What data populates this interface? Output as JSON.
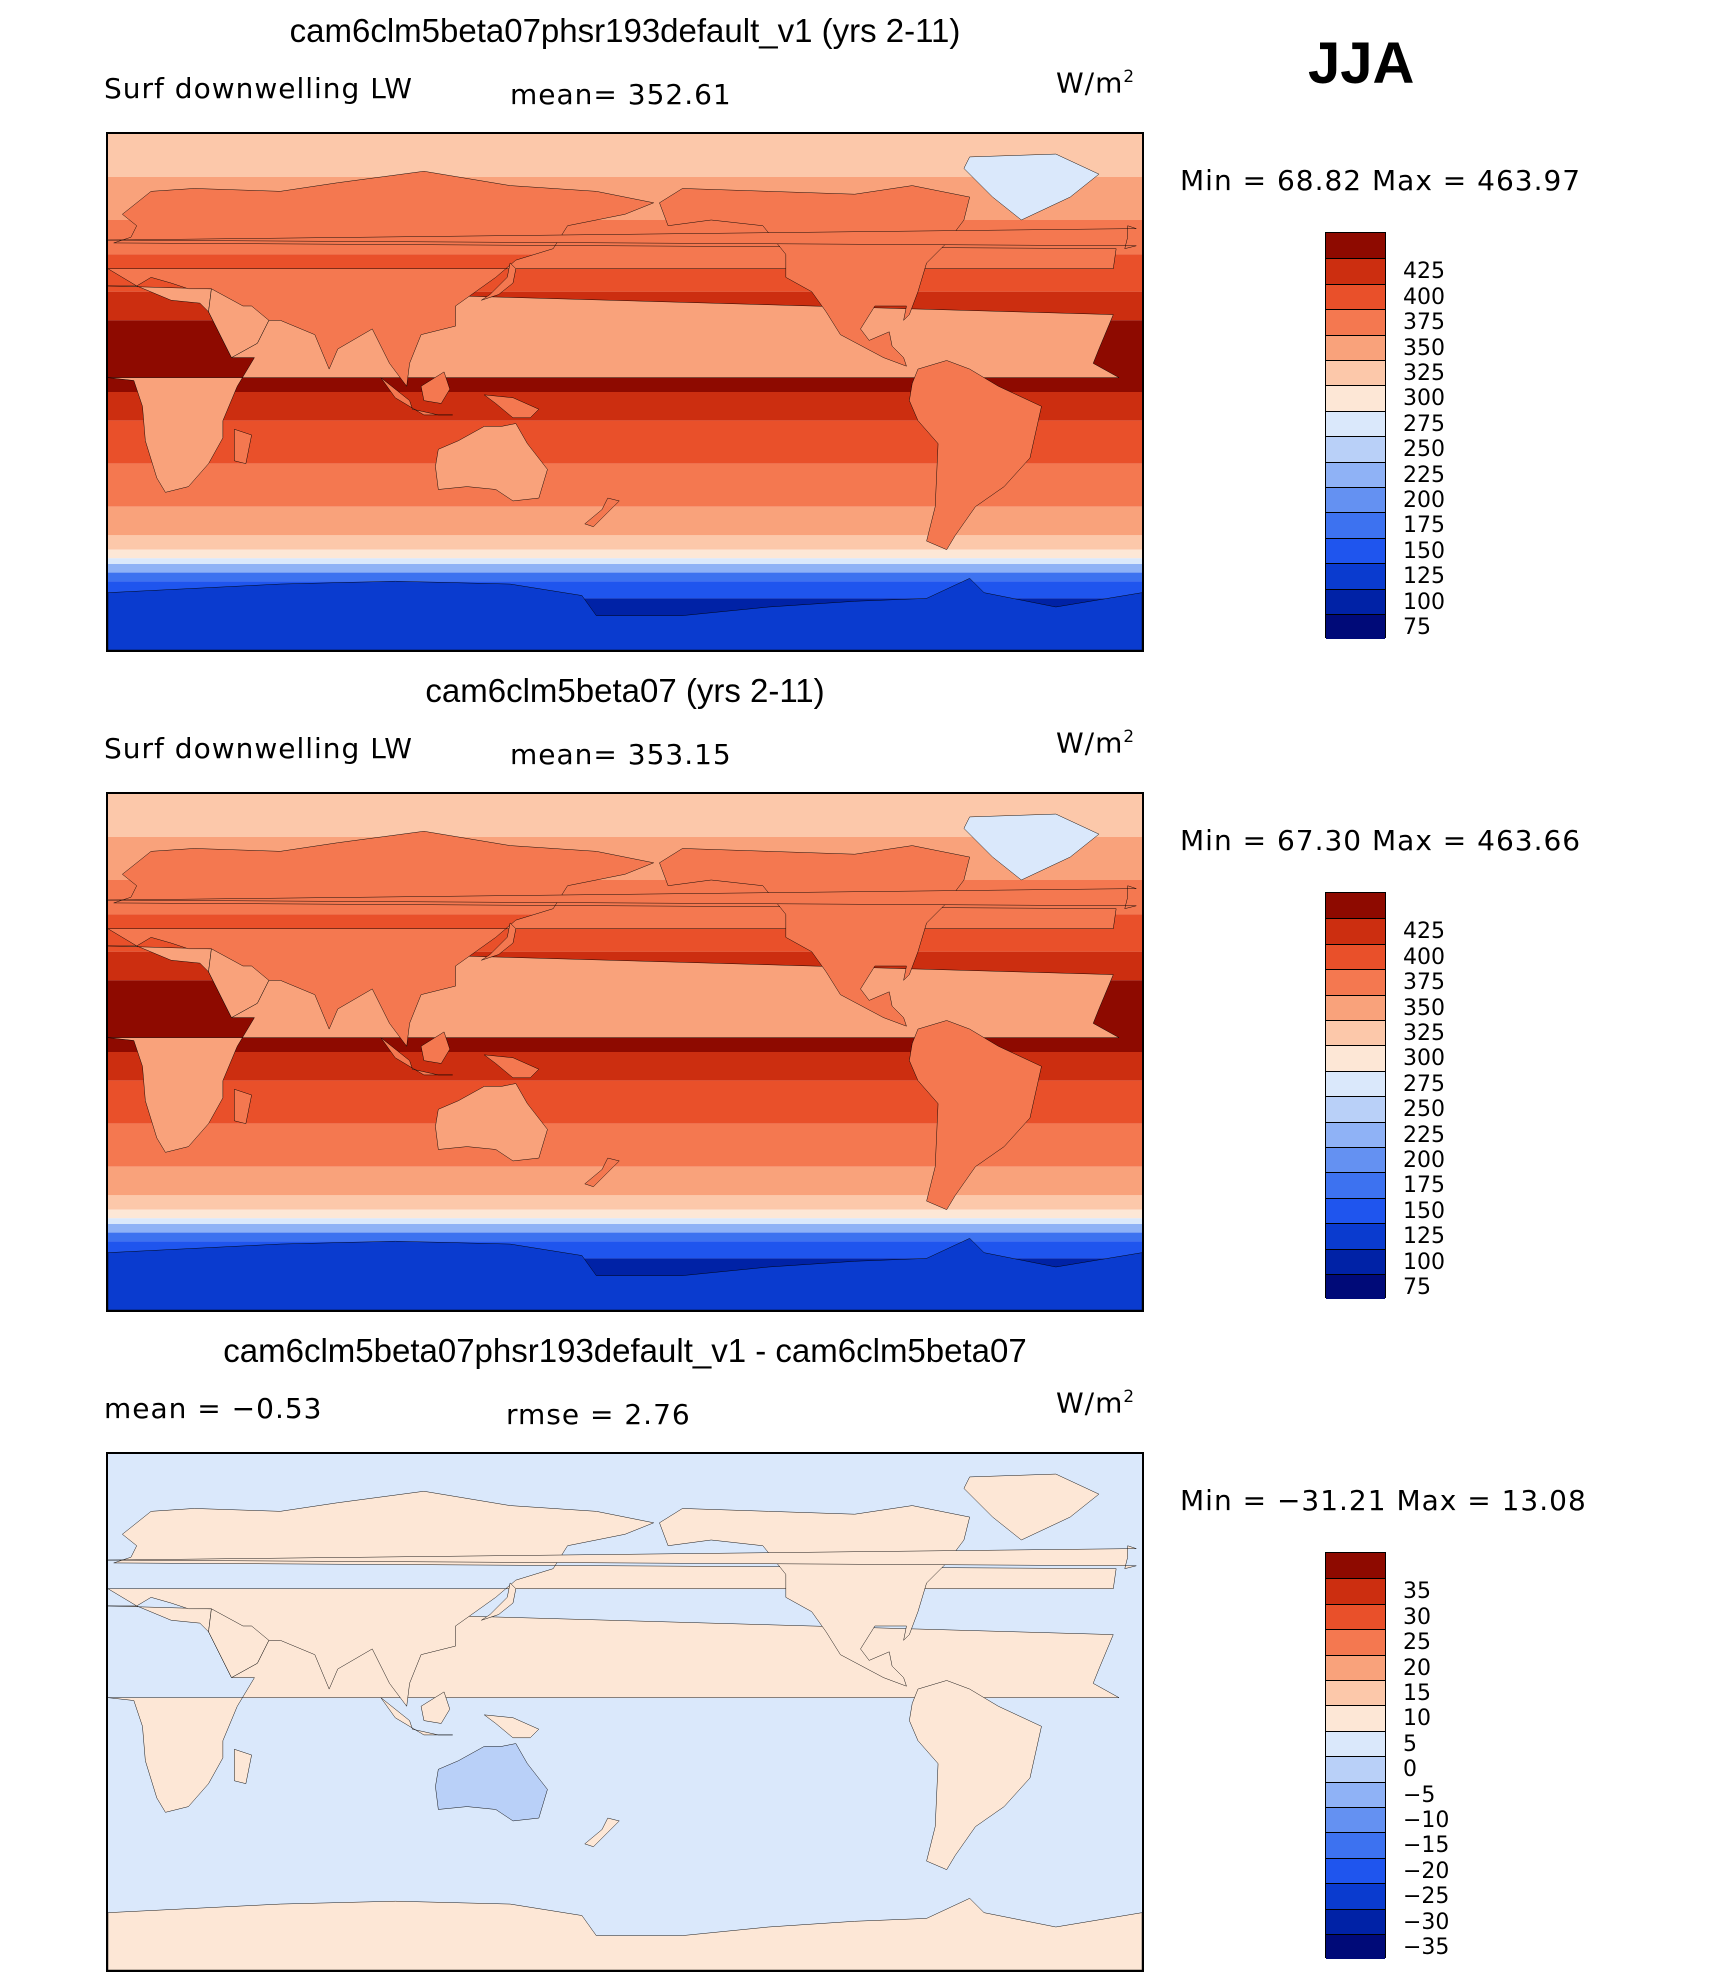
{
  "season": "JJA",
  "units_label": "W/m",
  "units_exp": "2",
  "panels": [
    {
      "title": "cam6clm5beta07phsr193default_v1 (yrs 2-11)",
      "left_label": "Surf  downwelling  LW",
      "mean_label": "mean=  352.61",
      "minmax_label": "Min  =    68.82  Max  =  463.97",
      "colorbar": "abs"
    },
    {
      "title": "cam6clm5beta07 (yrs 2-11)",
      "left_label": "Surf  downwelling  LW",
      "mean_label": "mean=  353.15",
      "minmax_label": "Min  =    67.30  Max  =  463.66",
      "colorbar": "abs"
    },
    {
      "title": "cam6clm5beta07phsr193default_v1 - cam6clm5beta07",
      "left_label": "mean  =    −0.53",
      "mean_label": "rmse  =      2.76",
      "minmax_label": "Min  = −31.21  Max  =    13.08",
      "colorbar": "diff"
    }
  ],
  "chart_data": [
    {
      "type": "heatmap",
      "title": "cam6clm5beta07phsr193default_v1 (yrs 2-11)",
      "variable": "Surf downwelling LW",
      "units": "W/m2",
      "season": "JJA",
      "mean": 352.61,
      "min": 68.82,
      "max": 463.97,
      "colorbar_levels": [
        75,
        100,
        125,
        150,
        175,
        200,
        225,
        250,
        275,
        300,
        325,
        350,
        375,
        400,
        425
      ],
      "colorbar_colors": [
        "#000a78",
        "#0022a6",
        "#0a3bcf",
        "#1f55ee",
        "#3d72f0",
        "#6491f2",
        "#8fb2f6",
        "#b9d0f8",
        "#dae8fb",
        "#fde7d6",
        "#fcc8aa",
        "#f9a27b",
        "#f47850",
        "#e9502a",
        "#cc2e10",
        "#8e0a00"
      ]
    },
    {
      "type": "heatmap",
      "title": "cam6clm5beta07 (yrs 2-11)",
      "variable": "Surf downwelling LW",
      "units": "W/m2",
      "season": "JJA",
      "mean": 353.15,
      "min": 67.3,
      "max": 463.66,
      "colorbar_levels": [
        75,
        100,
        125,
        150,
        175,
        200,
        225,
        250,
        275,
        300,
        325,
        350,
        375,
        400,
        425
      ],
      "colorbar_colors": [
        "#000a78",
        "#0022a6",
        "#0a3bcf",
        "#1f55ee",
        "#3d72f0",
        "#6491f2",
        "#8fb2f6",
        "#b9d0f8",
        "#dae8fb",
        "#fde7d6",
        "#fcc8aa",
        "#f9a27b",
        "#f47850",
        "#e9502a",
        "#cc2e10",
        "#8e0a00"
      ]
    },
    {
      "type": "heatmap",
      "title": "cam6clm5beta07phsr193default_v1 - cam6clm5beta07",
      "units": "W/m2",
      "season": "JJA",
      "mean": -0.53,
      "rmse": 2.76,
      "min": -31.21,
      "max": 13.08,
      "colorbar_levels": [
        -35,
        -30,
        -25,
        -20,
        -15,
        -10,
        -5,
        0,
        5,
        10,
        15,
        20,
        25,
        30,
        35
      ],
      "colorbar_colors": [
        "#000a78",
        "#0022a6",
        "#0a3bcf",
        "#1f55ee",
        "#3d72f0",
        "#6491f2",
        "#8fb2f6",
        "#b9d0f8",
        "#dae8fb",
        "#fde7d6",
        "#fcc8aa",
        "#f9a27b",
        "#f47850",
        "#e9502a",
        "#cc2e10",
        "#8e0a00"
      ]
    }
  ]
}
